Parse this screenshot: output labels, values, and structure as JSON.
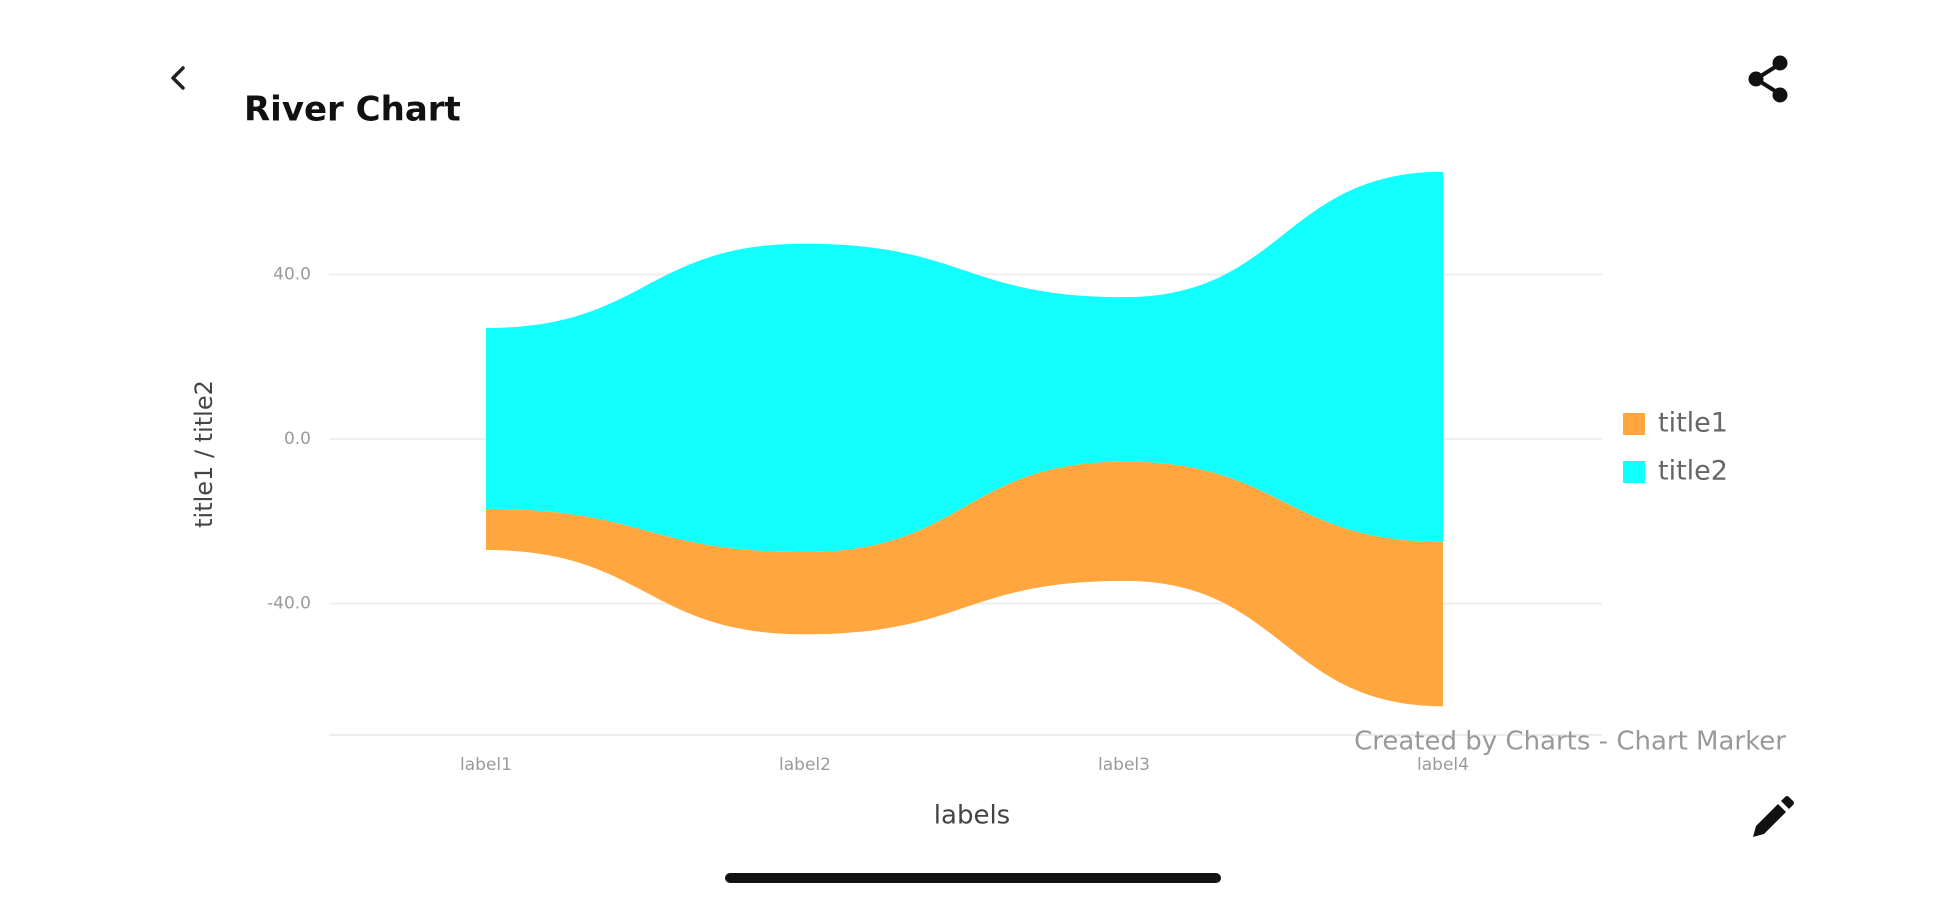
{
  "header": {
    "title": "River Chart"
  },
  "chart_data": {
    "type": "streamgraph",
    "categories": [
      "label1",
      "label2",
      "label3",
      "label4"
    ],
    "series": [
      {
        "name": "title1",
        "color": "#ffa63e",
        "values": [
          10,
          20,
          29,
          40
        ]
      },
      {
        "name": "title2",
        "color": "#12ffff",
        "values": [
          44,
          75,
          40,
          90
        ]
      }
    ],
    "ylim": [
      -72,
      72
    ],
    "yticks": [
      {
        "value": -40,
        "label": "-40.0"
      },
      {
        "value": 0,
        "label": "0.0"
      },
      {
        "value": 40,
        "label": "40.0"
      }
    ],
    "x_label": "labels",
    "y_label": "title1 / title2",
    "grid": true,
    "legend": "right",
    "watermark": "Created by Charts - Chart Marker"
  }
}
